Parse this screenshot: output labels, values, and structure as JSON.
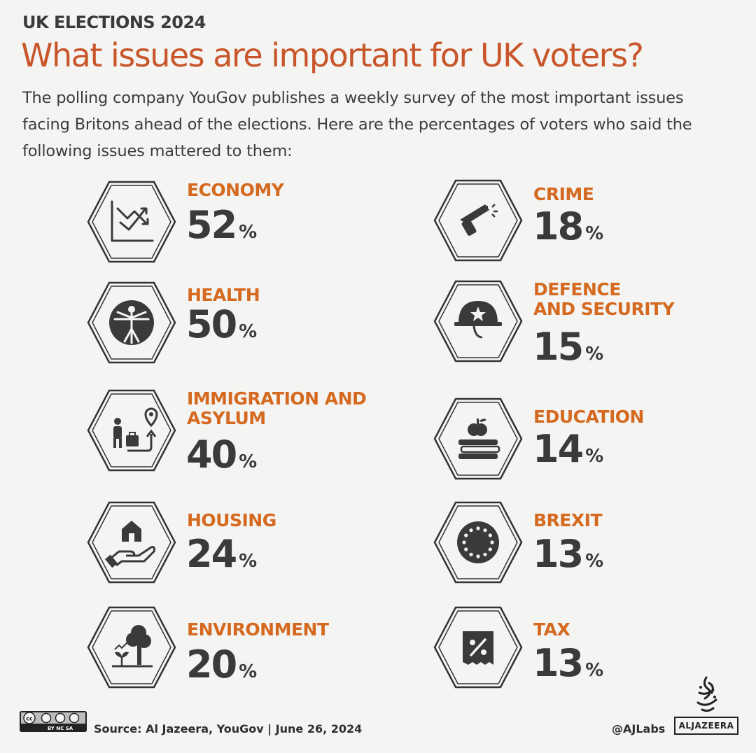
{
  "header": {
    "kicker": "UK ELECTIONS 2024",
    "title": "What issues are important for UK voters?",
    "intro": "The polling company YouGov publishes a weekly survey of the most important issues facing Britons ahead of the elections. Here are the percentages of voters who said the following issues mattered to them:"
  },
  "colors": {
    "accent": "#d4691f",
    "title": "#c8562a",
    "text": "#3a3a3a",
    "background": "#f4f4f2"
  },
  "issues": {
    "economy": {
      "label": "ECONOMY",
      "value": "52",
      "unit": "%",
      "icon": "chart-trend-icon"
    },
    "health": {
      "label": "HEALTH",
      "value": "50",
      "unit": "%",
      "icon": "vitruvian-man-icon"
    },
    "immigration": {
      "label_line1": "IMMIGRATION AND",
      "label_line2": "ASYLUM",
      "value": "40",
      "unit": "%",
      "icon": "traveller-location-icon"
    },
    "housing": {
      "label": "HOUSING",
      "value": "24",
      "unit": "%",
      "icon": "house-in-hand-icon"
    },
    "environment": {
      "label": "ENVIRONMENT",
      "value": "20",
      "unit": "%",
      "icon": "tree-sprout-icon"
    },
    "crime": {
      "label": "CRIME",
      "value": "18",
      "unit": "%",
      "icon": "gun-hand-icon"
    },
    "defence": {
      "label_line1": "DEFENCE",
      "label_line2": "AND SECURITY",
      "value": "15",
      "unit": "%",
      "icon": "military-helmet-icon"
    },
    "education": {
      "label": "EDUCATION",
      "value": "14",
      "unit": "%",
      "icon": "apple-on-books-icon"
    },
    "brexit": {
      "label": "BREXIT",
      "value": "13",
      "unit": "%",
      "icon": "eu-stars-icon"
    },
    "tax": {
      "label": "TAX",
      "value": "13",
      "unit": "%",
      "icon": "percent-receipt-icon"
    }
  },
  "footer": {
    "license": "BY NC SA",
    "source": "Source: Al Jazeera, YouGov   |   June 26, 2024",
    "handle": "@AJLabs",
    "brand": "ALJAZEERA"
  }
}
